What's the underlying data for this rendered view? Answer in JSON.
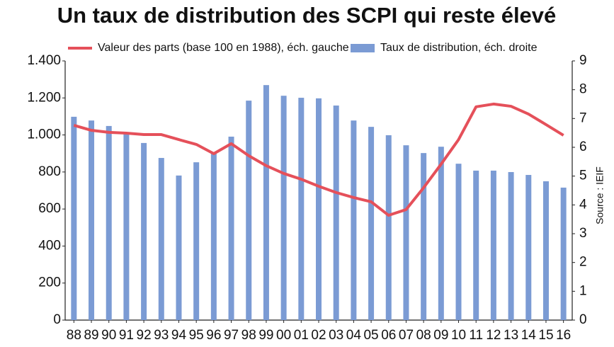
{
  "chart_data": {
    "type": "combo",
    "title": "Un taux de distribution des SCPI qui reste élevé",
    "source": "Source : IEIF",
    "categories": [
      "88",
      "89",
      "90",
      "91",
      "92",
      "93",
      "94",
      "95",
      "96",
      "97",
      "98",
      "99",
      "00",
      "01",
      "02",
      "03",
      "04",
      "05",
      "06",
      "07",
      "08",
      "09",
      "10",
      "11",
      "12",
      "13",
      "14",
      "15",
      "16"
    ],
    "series": [
      {
        "name": "Valeur des parts (base 100 en 1988), éch. gauche",
        "type": "line",
        "axis": "y",
        "color": "#e5505a",
        "values": [
          1052,
          1025,
          1014,
          1010,
          1002,
          1002,
          975,
          949,
          899,
          953,
          888,
          834,
          792,
          761,
          723,
          689,
          662,
          639,
          566,
          597,
          715,
          842,
          975,
          1152,
          1167,
          1155,
          1113,
          1056,
          998
        ]
      },
      {
        "name": "Taux de distribution, éch. droite",
        "type": "bar",
        "axis": "y2",
        "color": "#7b9bd4",
        "values": [
          7.06,
          6.93,
          6.74,
          6.5,
          6.15,
          5.63,
          5.02,
          5.48,
          5.8,
          6.37,
          7.62,
          8.16,
          7.79,
          7.72,
          7.7,
          7.45,
          6.93,
          6.71,
          6.42,
          6.07,
          5.8,
          6.02,
          5.43,
          5.19,
          5.19,
          5.14,
          5.04,
          4.82,
          4.6
        ]
      }
    ],
    "ylim": [
      0,
      1400
    ],
    "yticks": [
      0,
      200,
      400,
      600,
      800,
      {
        "value": 1000,
        "label": "1.000"
      },
      {
        "value": 1200,
        "label": "1.200"
      },
      {
        "value": 1400,
        "label": "1.400"
      }
    ],
    "y2lim": [
      0,
      9
    ],
    "y2ticks": [
      0,
      1,
      2,
      3,
      4,
      5,
      6,
      7,
      8,
      9
    ]
  }
}
